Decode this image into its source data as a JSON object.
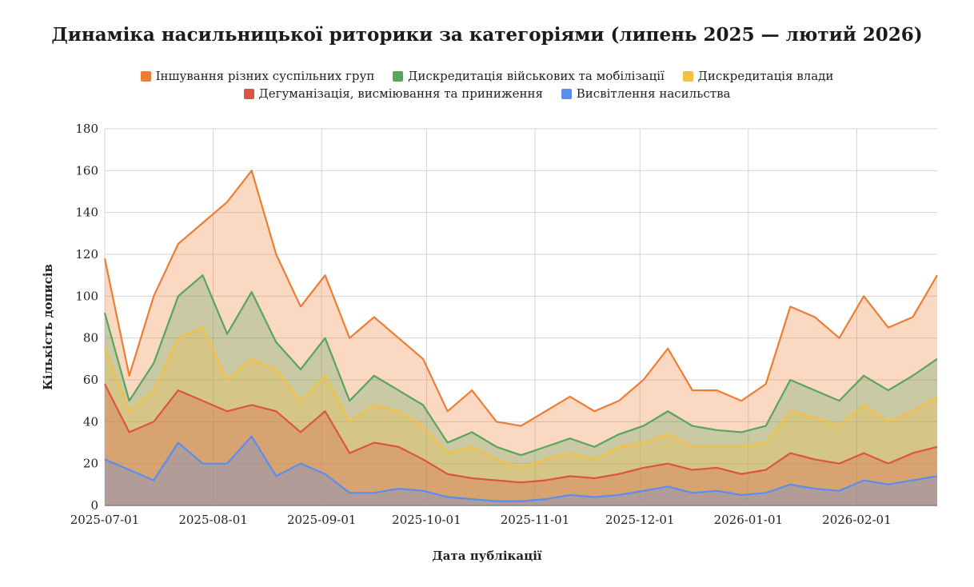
{
  "chart_data": {
    "type": "area",
    "stacked": true,
    "title": "Динаміка насильницької риторики за категоріями (липень 2025 — лютий 2026)",
    "xlabel": "Дата публікації",
    "ylabel": "Кількість дописів",
    "ylim": [
      0,
      180
    ],
    "y_ticks": [
      0,
      20,
      40,
      60,
      80,
      100,
      120,
      140,
      160,
      180
    ],
    "x_ticks": [
      "2025-07-01",
      "2025-08-01",
      "2025-09-01",
      "2025-10-01",
      "2025-11-01",
      "2025-12-01",
      "2026-01-01",
      "2026-02-01"
    ],
    "grid": true,
    "legend_position": "top",
    "x": [
      "2025-07-01",
      "2025-07-08",
      "2025-07-15",
      "2025-07-22",
      "2025-07-29",
      "2025-08-05",
      "2025-08-12",
      "2025-08-19",
      "2025-08-26",
      "2025-09-02",
      "2025-09-09",
      "2025-09-16",
      "2025-09-23",
      "2025-09-30",
      "2025-10-07",
      "2025-10-14",
      "2025-10-21",
      "2025-10-28",
      "2025-11-04",
      "2025-11-11",
      "2025-11-18",
      "2025-11-25",
      "2025-12-02",
      "2025-12-09",
      "2025-12-16",
      "2025-12-23",
      "2025-12-30",
      "2026-01-06",
      "2026-01-13",
      "2026-01-20",
      "2026-01-27",
      "2026-02-03",
      "2026-02-10",
      "2026-02-17",
      "2026-02-24"
    ],
    "series": [
      {
        "name": "Висвітлення насильства",
        "color": "#5b8def",
        "values": [
          22,
          17,
          12,
          30,
          20,
          20,
          33,
          14,
          20,
          15,
          6,
          6,
          8,
          7,
          4,
          3,
          2,
          2,
          3,
          5,
          4,
          5,
          7,
          9,
          6,
          7,
          5,
          6,
          10,
          8,
          7,
          12,
          10,
          12,
          14
        ]
      },
      {
        "name": "Дегуманізація, висміювання та приниження",
        "color": "#dc5444",
        "values": [
          58,
          35,
          40,
          55,
          50,
          45,
          48,
          45,
          35,
          45,
          25,
          30,
          28,
          22,
          15,
          13,
          12,
          11,
          12,
          14,
          13,
          15,
          18,
          20,
          17,
          18,
          15,
          17,
          25,
          22,
          20,
          25,
          20,
          25,
          28
        ]
      },
      {
        "name": "Дискредитація влади",
        "color": "#f4c042",
        "values": [
          75,
          45,
          55,
          80,
          85,
          60,
          70,
          65,
          50,
          62,
          40,
          48,
          45,
          38,
          25,
          28,
          22,
          18,
          22,
          25,
          22,
          28,
          30,
          34,
          28,
          28,
          28,
          30,
          45,
          42,
          38,
          48,
          40,
          45,
          52
        ]
      },
      {
        "name": "Дискредитація військових та мобілізації",
        "color": "#58a55c",
        "values": [
          92,
          50,
          68,
          100,
          110,
          82,
          102,
          78,
          65,
          80,
          50,
          62,
          55,
          48,
          30,
          35,
          28,
          24,
          28,
          32,
          28,
          34,
          38,
          45,
          38,
          36,
          35,
          38,
          60,
          55,
          50,
          62,
          55,
          62,
          70
        ]
      },
      {
        "name": "Іншування різних суспільних груп",
        "color": "#ee7d34",
        "values": [
          118,
          62,
          100,
          125,
          135,
          145,
          160,
          120,
          95,
          110,
          80,
          90,
          80,
          70,
          45,
          55,
          40,
          38,
          45,
          52,
          45,
          50,
          60,
          75,
          55,
          55,
          50,
          58,
          95,
          90,
          80,
          100,
          85,
          90,
          110
        ]
      }
    ]
  }
}
